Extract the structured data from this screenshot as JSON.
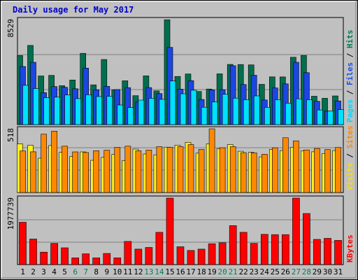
{
  "chart_data": [
    {
      "type": "bar",
      "title": "Daily usage for May 2017",
      "ymax_label": "8529",
      "ymax": 8529,
      "categories": [
        "1",
        "2",
        "3",
        "4",
        "5",
        "6",
        "7",
        "8",
        "9",
        "10",
        "11",
        "12",
        "13",
        "14",
        "15",
        "16",
        "17",
        "18",
        "19",
        "20",
        "21",
        "22",
        "23",
        "24",
        "25",
        "26",
        "27",
        "28",
        "29",
        "30",
        "31"
      ],
      "weekend_days": [
        "6",
        "7",
        "13",
        "14",
        "20",
        "21",
        "27",
        "28"
      ],
      "legend": [
        {
          "label": "Hits",
          "color": "#007b52"
        },
        {
          "label": "Files",
          "color": "#1a4ee8"
        },
        {
          "label": "Pages",
          "color": "#00d8ff"
        }
      ],
      "separator": " / ",
      "series": [
        {
          "name": "Hits",
          "color": "#006f4e",
          "values": [
            5610,
            6430,
            3950,
            4000,
            3160,
            3620,
            5790,
            3230,
            5290,
            2830,
            3560,
            2350,
            3960,
            2740,
            8520,
            3910,
            4110,
            2690,
            2890,
            4120,
            4890,
            4880,
            4850,
            3270,
            3880,
            3870,
            5470,
            5620,
            2300,
            2140,
            2330
          ]
        },
        {
          "name": "Files",
          "color": "#1b46e0",
          "values": [
            4720,
            5060,
            2590,
            3090,
            3030,
            2910,
            4590,
            2820,
            3110,
            2850,
            3000,
            1830,
            3010,
            2520,
            6270,
            2880,
            3570,
            2040,
            2820,
            2830,
            4780,
            3260,
            4010,
            2000,
            2980,
            3310,
            5060,
            4220,
            1890,
            1110,
            1920
          ]
        },
        {
          "name": "Pages",
          "color": "#00e0ff",
          "values": [
            3190,
            2930,
            2190,
            2230,
            2410,
            2110,
            2420,
            2280,
            2300,
            1590,
            1390,
            1990,
            2140,
            2050,
            3540,
            2500,
            2790,
            1410,
            1840,
            2460,
            2150,
            2020,
            2330,
            1400,
            2020,
            1740,
            2090,
            2020,
            1190,
            1110,
            1210
          ]
        }
      ]
    },
    {
      "type": "bar",
      "ymax_label": "518",
      "ymax": 518,
      "categories": [
        "1",
        "2",
        "3",
        "4",
        "5",
        "6",
        "7",
        "8",
        "9",
        "10",
        "11",
        "12",
        "13",
        "14",
        "15",
        "16",
        "17",
        "18",
        "19",
        "20",
        "21",
        "22",
        "23",
        "24",
        "25",
        "26",
        "27",
        "28",
        "29",
        "30",
        "31"
      ],
      "legend": [
        {
          "label": "Sites",
          "color": "#ff8800"
        },
        {
          "label": "Visits",
          "color": "#ffdd00"
        }
      ],
      "separator": " / ",
      "series": [
        {
          "name": "Visits",
          "color": "#ffee22",
          "values": [
            395,
            385,
            279,
            382,
            326,
            294,
            330,
            262,
            286,
            309,
            260,
            353,
            313,
            306,
            369,
            385,
            408,
            320,
            395,
            356,
            390,
            335,
            326,
            290,
            350,
            341,
            366,
            340,
            331,
            316,
            341
          ]
        },
        {
          "name": "Sites",
          "color": "#ff8800",
          "values": [
            338,
            331,
            474,
            499,
            377,
            330,
            325,
            340,
            344,
            367,
            377,
            339,
            345,
            373,
            368,
            373,
            390,
            350,
            518,
            364,
            373,
            324,
            323,
            311,
            364,
            445,
            420,
            346,
            358,
            349,
            366
          ]
        }
      ]
    },
    {
      "type": "bar",
      "ymax_label": "1977739",
      "ymax": 1977739,
      "categories": [
        "1",
        "2",
        "3",
        "4",
        "5",
        "6",
        "7",
        "8",
        "9",
        "10",
        "11",
        "12",
        "13",
        "14",
        "15",
        "16",
        "17",
        "18",
        "19",
        "20",
        "21",
        "22",
        "23",
        "24",
        "25",
        "26",
        "27",
        "28",
        "29",
        "30",
        "31"
      ],
      "legend": [
        {
          "label": "KBytes",
          "color": "#ff0000"
        }
      ],
      "series": [
        {
          "name": "KBytes",
          "color": "#ff0000",
          "values": [
            1260000,
            760000,
            370000,
            630000,
            500000,
            200000,
            320000,
            200000,
            330000,
            200000,
            690000,
            460000,
            510000,
            960000,
            1977739,
            530000,
            420000,
            460000,
            620000,
            650000,
            1160000,
            960000,
            630000,
            900000,
            890000,
            890000,
            1977739,
            1520000,
            750000,
            780000,
            720000
          ]
        }
      ]
    }
  ]
}
